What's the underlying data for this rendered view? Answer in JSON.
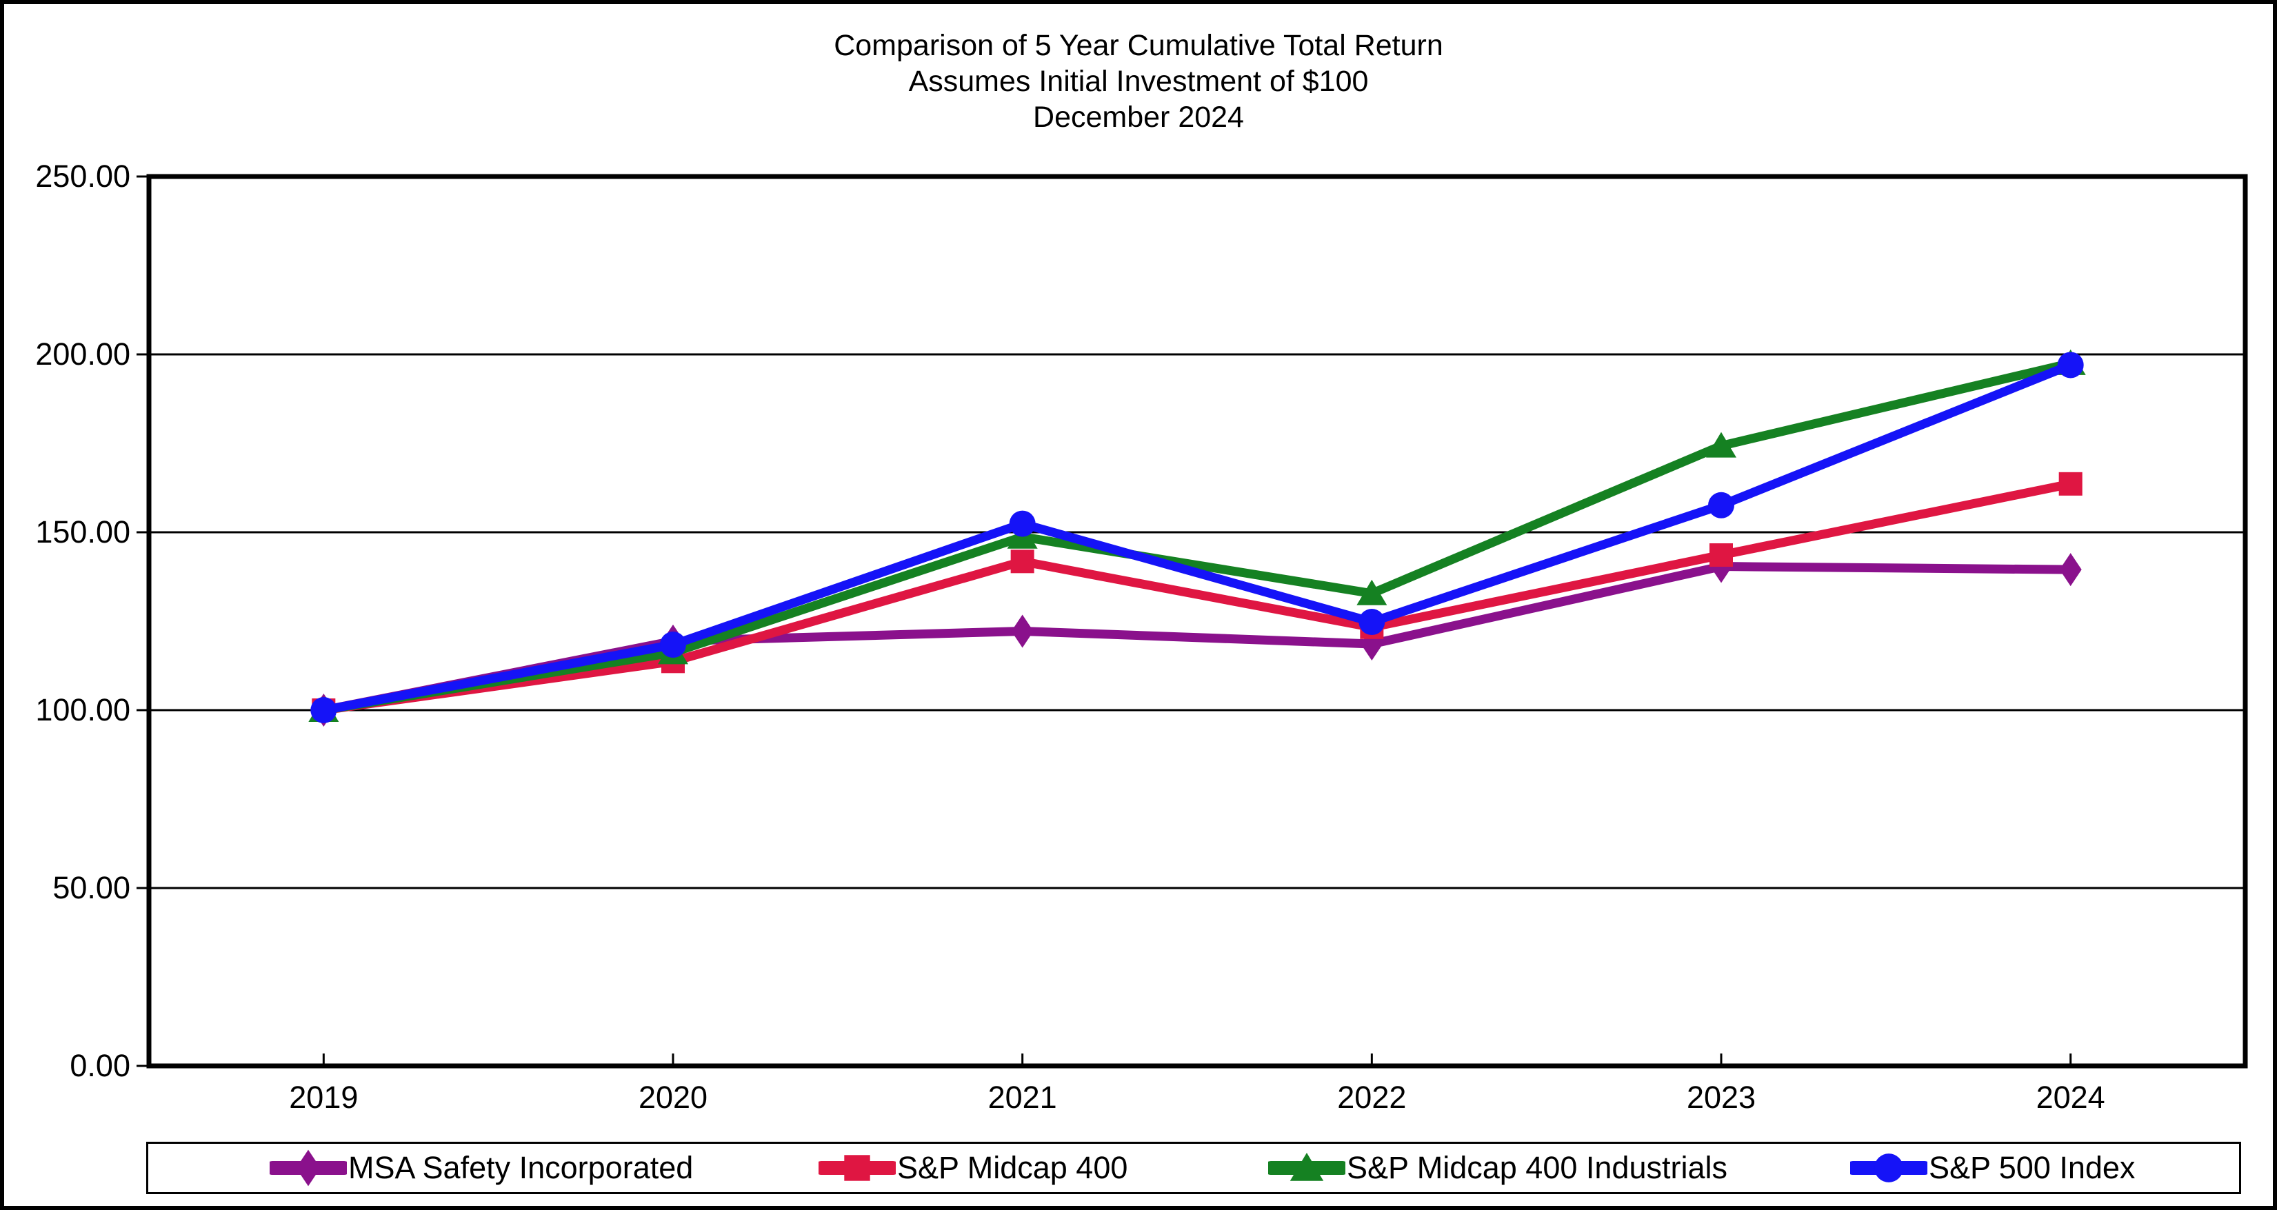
{
  "title": {
    "line1": "Comparison of 5 Year Cumulative Total Return",
    "line2": "Assumes Initial Investment of $100",
    "line3": "December 2024"
  },
  "chart_data": {
    "type": "line",
    "title": "Comparison of 5 Year Cumulative Total Return — Assumes Initial Investment of $100 — December 2024",
    "xlabel": "",
    "ylabel": "",
    "categories": [
      "2019",
      "2020",
      "2021",
      "2022",
      "2023",
      "2024"
    ],
    "series": [
      {
        "name": "MSA Safety Incorporated",
        "color": "#8A118C",
        "marker": "diamond",
        "values": [
          100.0,
          119.4,
          122.2,
          118.6,
          140.4,
          139.5
        ]
      },
      {
        "name": "S&P Midcap 400",
        "color": "#DF1642",
        "marker": "square",
        "values": [
          100.0,
          113.7,
          141.8,
          123.3,
          143.6,
          163.6
        ]
      },
      {
        "name": "S&P Midcap 400 Industrials",
        "color": "#158122",
        "marker": "triangle",
        "values": [
          100.0,
          116.2,
          148.7,
          132.8,
          174.3,
          197.5
        ]
      },
      {
        "name": "S&P 500 Index",
        "color": "#1513F7",
        "marker": "circle",
        "values": [
          100.0,
          118.4,
          152.4,
          124.8,
          157.6,
          197.0
        ]
      }
    ],
    "ylim": [
      0,
      250
    ],
    "y_ticks": [
      "0.00",
      "50.00",
      "100.00",
      "150.00",
      "200.00",
      "250.00"
    ],
    "grid": true,
    "legend_position": "bottom",
    "axis_color": "#000000",
    "background_color": "#FFFFFF"
  },
  "legend": {
    "items": [
      "MSA Safety Incorporated",
      "S&P Midcap 400",
      "S&P Midcap 400 Industrials",
      "S&P 500 Index"
    ]
  }
}
